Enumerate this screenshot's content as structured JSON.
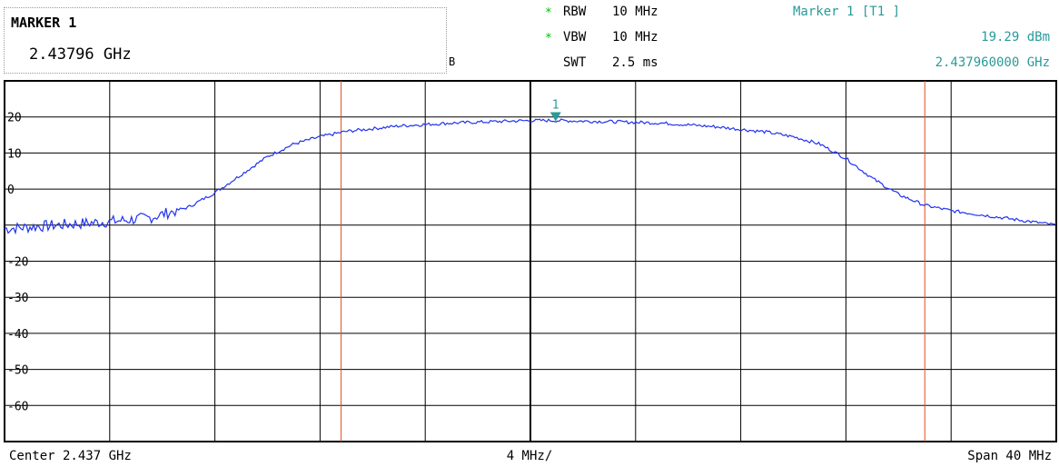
{
  "marker_box": {
    "title": "MARKER 1",
    "frequency": "2.43796 GHz",
    "fragment": "B"
  },
  "params": [
    {
      "star": "*",
      "label": "RBW",
      "value": "10 MHz"
    },
    {
      "star": "*",
      "label": "VBW",
      "value": "10 MHz"
    },
    {
      "star": "",
      "label": "SWT",
      "value": "2.5 ms"
    }
  ],
  "marker_info": {
    "title": "Marker 1 [T1 ]",
    "level": "19.29 dBm",
    "frequency": "2.437960000 GHz"
  },
  "footer": {
    "center": "Center 2.437 GHz",
    "per_div": "4 MHz/",
    "span": "Span 40 MHz"
  },
  "colors": {
    "trace": "#2233ee",
    "grid": "#000000",
    "marker_line": "#e05020",
    "marker": "#2a9a9a"
  },
  "chart_data": {
    "type": "line",
    "x_unit": "GHz",
    "y_unit": "dBm",
    "xlim": [
      2.417,
      2.457
    ],
    "ylim": [
      -70,
      30
    ],
    "y_ticks": [
      20,
      10,
      0,
      -10,
      -20,
      -30,
      -40,
      -50,
      -60
    ],
    "y_tick_labels": [
      "20",
      "10",
      "0",
      "",
      "-20",
      "-30",
      "-40",
      "-50",
      "-60"
    ],
    "grid": true,
    "marker": {
      "label": "1",
      "x": 2.43796,
      "y": 19.29
    },
    "vertical_lines": [
      2.4298,
      2.452
    ],
    "series": [
      {
        "x": [
          2.417,
          2.419,
          2.421,
          2.4225,
          2.424,
          2.425,
          2.426,
          2.427,
          2.428,
          2.429,
          2.43,
          2.432,
          2.434,
          2.436,
          2.437,
          2.438,
          2.44,
          2.442,
          2.444,
          2.446,
          2.447,
          2.448,
          2.449,
          2.45,
          2.451,
          2.452,
          2.453,
          2.454,
          2.455,
          2.456,
          2.457
        ],
        "y": [
          -11,
          -10,
          -9,
          -8,
          -5,
          -1,
          4,
          9,
          12.5,
          14.5,
          16,
          17.5,
          18.3,
          18.8,
          19,
          19,
          18.7,
          18.3,
          17.3,
          15.8,
          14.5,
          12.5,
          8.5,
          3,
          -1.5,
          -4.5,
          -6,
          -7,
          -8,
          -9,
          -10
        ]
      }
    ]
  }
}
